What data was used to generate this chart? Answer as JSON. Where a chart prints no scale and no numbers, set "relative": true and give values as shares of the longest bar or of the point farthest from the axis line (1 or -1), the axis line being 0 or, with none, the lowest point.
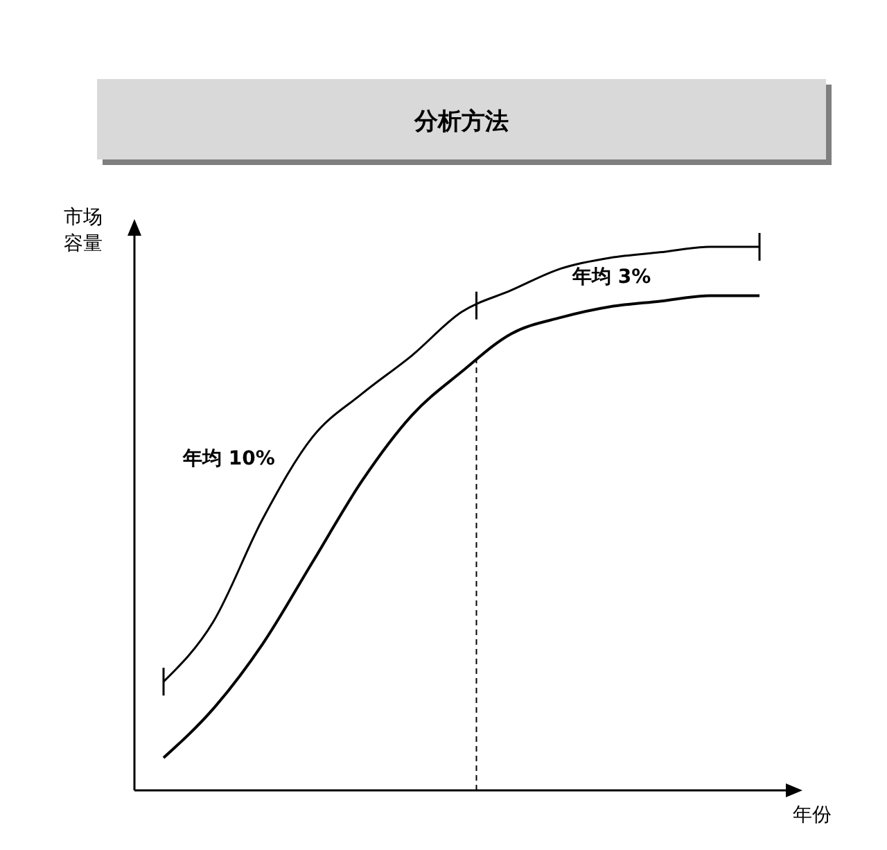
{
  "chart_data": {
    "type": "line",
    "title": "分析方法",
    "relative": true,
    "categories": [
      null,
      null,
      null,
      null,
      null,
      null,
      null,
      null,
      null,
      null,
      null,
      null,
      null
    ],
    "series": [
      {
        "color": "#000000",
        "values": [
          0.06,
          0.15,
          0.27,
          0.42,
          0.57,
          0.69,
          0.77,
          0.84,
          0.87,
          0.89,
          0.9,
          0.91,
          0.91
        ]
      },
      {
        "color": "#000000",
        "values": [
          0.2,
          0.31,
          0.5,
          0.65,
          0.73,
          0.8,
          0.88,
          0.92,
          0.96,
          0.98,
          0.99,
          1,
          1
        ]
      }
    ],
    "annotations": [
      "市场容量",
      "年份",
      "年均 10%",
      "年均 3%"
    ]
  }
}
